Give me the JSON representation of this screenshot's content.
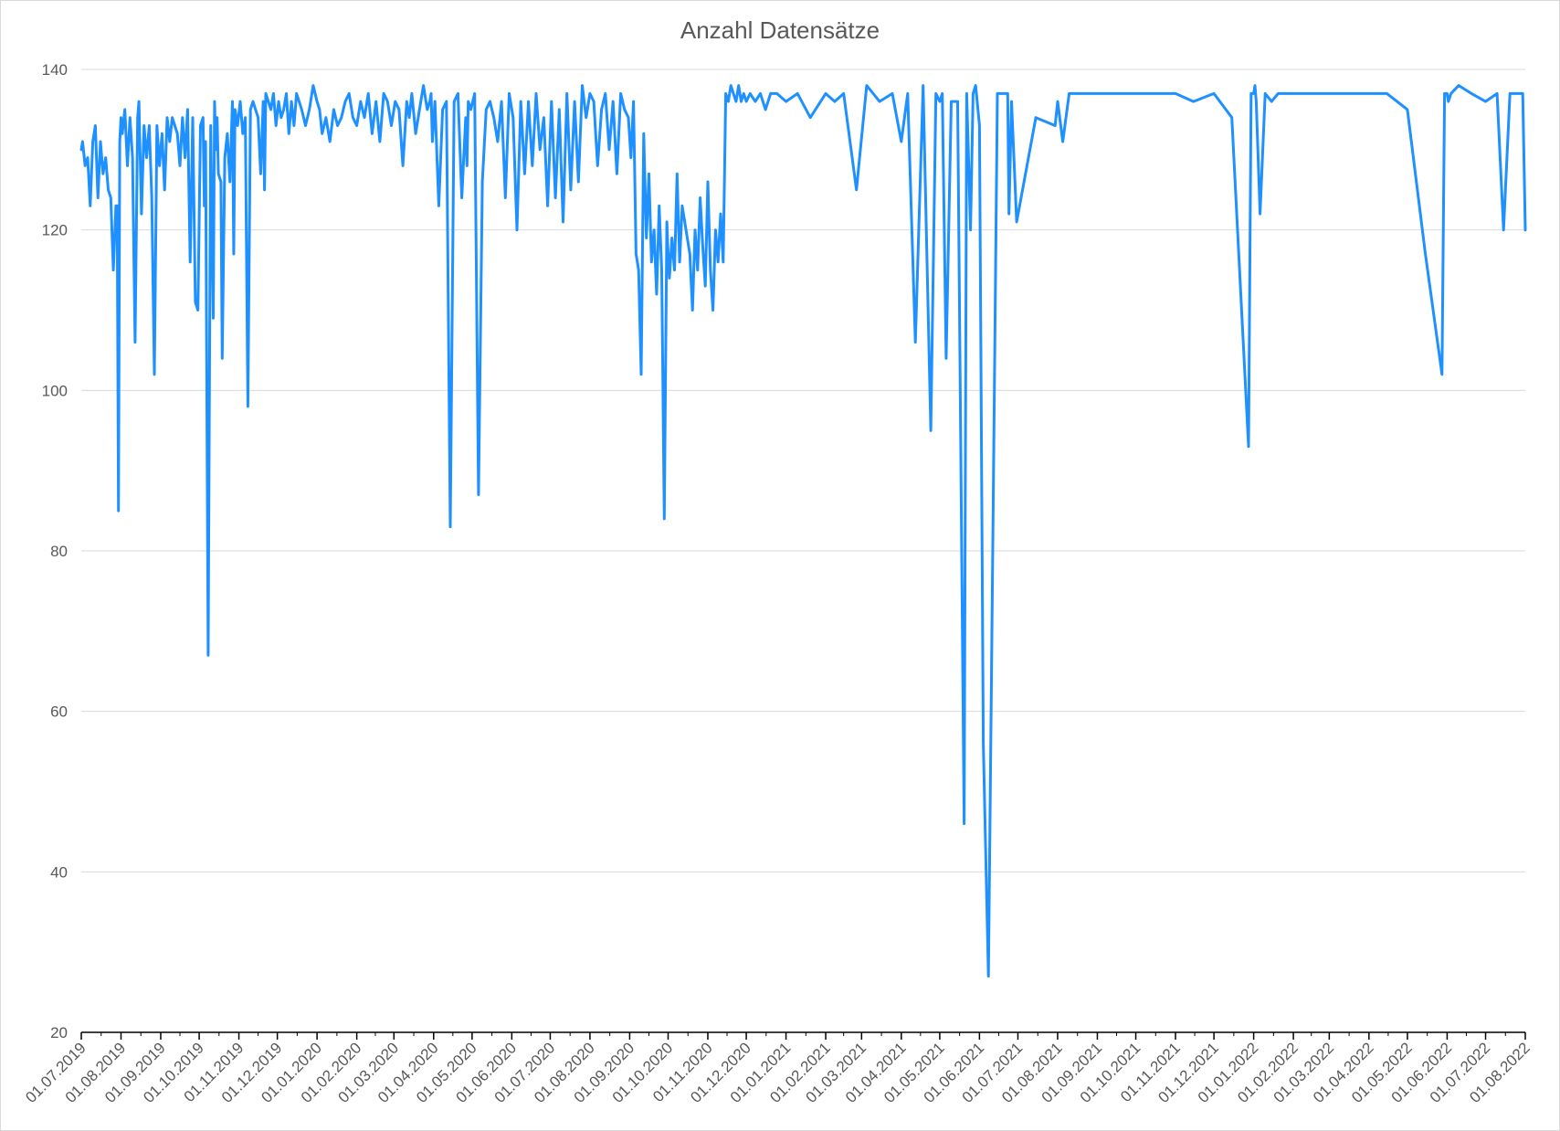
{
  "chart_data": {
    "type": "line",
    "title": "Anzahl Datensätze",
    "xlabel": "",
    "ylabel": "",
    "ylim": [
      20,
      140
    ],
    "yticks": [
      20,
      40,
      60,
      80,
      100,
      120,
      140
    ],
    "x_tick_labels": [
      "01.07.2019",
      "01.08.2019",
      "01.09.2019",
      "01.10.2019",
      "01.11.2019",
      "01.12.2019",
      "01.01.2020",
      "01.02.2020",
      "01.03.2020",
      "01.04.2020",
      "01.05.2020",
      "01.06.2020",
      "01.07.2020",
      "01.08.2020",
      "01.09.2020",
      "01.10.2020",
      "01.11.2020",
      "01.12.2020",
      "01.01.2021",
      "01.02.2021",
      "01.03.2021",
      "01.04.2021",
      "01.05.2021",
      "01.06.2021",
      "01.07.2021",
      "01.08.2021",
      "01.09.2021",
      "01.10.2021",
      "01.11.2021",
      "01.12.2021",
      "01.01.2022",
      "01.02.2022",
      "01.03.2022",
      "01.04.2022",
      "01.05.2022",
      "01.06.2022",
      "01.07.2022",
      "01.08.2022"
    ],
    "grid": true,
    "legend": "none",
    "color": "#1e90ff",
    "series": [
      {
        "x": [
          "2019-07-01",
          "2019-07-02",
          "2019-07-04",
          "2019-07-06",
          "2019-07-08",
          "2019-07-10",
          "2019-07-12",
          "2019-07-14",
          "2019-07-16",
          "2019-07-18",
          "2019-07-20",
          "2019-07-22",
          "2019-07-24",
          "2019-07-26",
          "2019-07-28",
          "2019-07-29",
          "2019-07-30",
          "2019-07-31",
          "2019-08-01",
          "2019-08-02",
          "2019-08-04",
          "2019-08-06",
          "2019-08-08",
          "2019-08-10",
          "2019-08-12",
          "2019-08-14",
          "2019-08-15",
          "2019-08-17",
          "2019-08-19",
          "2019-08-21",
          "2019-08-23",
          "2019-08-25",
          "2019-08-27",
          "2019-08-29",
          "2019-08-31",
          "2019-09-02",
          "2019-09-04",
          "2019-09-06",
          "2019-09-08",
          "2019-09-10",
          "2019-09-12",
          "2019-09-14",
          "2019-09-16",
          "2019-09-18",
          "2019-09-20",
          "2019-09-22",
          "2019-09-24",
          "2019-09-26",
          "2019-09-28",
          "2019-09-30",
          "2019-10-02",
          "2019-10-04",
          "2019-10-05",
          "2019-10-06",
          "2019-10-08",
          "2019-10-10",
          "2019-10-12",
          "2019-10-13",
          "2019-10-14",
          "2019-10-15",
          "2019-10-16",
          "2019-10-18",
          "2019-10-19",
          "2019-10-21",
          "2019-10-23",
          "2019-10-25",
          "2019-10-27",
          "2019-10-28",
          "2019-10-29",
          "2019-10-31",
          "2019-11-02",
          "2019-11-04",
          "2019-11-06",
          "2019-11-08",
          "2019-11-10",
          "2019-11-12",
          "2019-11-14",
          "2019-11-16",
          "2019-11-18",
          "2019-11-20",
          "2019-11-21",
          "2019-11-22",
          "2019-11-24",
          "2019-11-26",
          "2019-11-28",
          "2019-11-30",
          "2019-12-02",
          "2019-12-04",
          "2019-12-06",
          "2019-12-08",
          "2019-12-10",
          "2019-12-12",
          "2019-12-14",
          "2019-12-16",
          "2019-12-18",
          "2019-12-20",
          "2019-12-23",
          "2019-12-26",
          "2019-12-29",
          "2020-01-01",
          "2020-01-03",
          "2020-01-05",
          "2020-01-08",
          "2020-01-11",
          "2020-01-14",
          "2020-01-17",
          "2020-01-20",
          "2020-01-23",
          "2020-01-26",
          "2020-01-29",
          "2020-02-01",
          "2020-02-04",
          "2020-02-07",
          "2020-02-10",
          "2020-02-13",
          "2020-02-16",
          "2020-02-19",
          "2020-02-22",
          "2020-02-25",
          "2020-02-28",
          "2020-03-02",
          "2020-03-05",
          "2020-03-08",
          "2020-03-11",
          "2020-03-13",
          "2020-03-15",
          "2020-03-18",
          "2020-03-21",
          "2020-03-24",
          "2020-03-27",
          "2020-03-29",
          "2020-03-30",
          "2020-03-31",
          "2020-04-02",
          "2020-04-05",
          "2020-04-08",
          "2020-04-11",
          "2020-04-14",
          "2020-04-17",
          "2020-04-20",
          "2020-04-23",
          "2020-04-26",
          "2020-04-27",
          "2020-04-28",
          "2020-04-30",
          "2020-05-03",
          "2020-05-06",
          "2020-05-09",
          "2020-05-12",
          "2020-05-15",
          "2020-05-18",
          "2020-05-21",
          "2020-05-24",
          "2020-05-27",
          "2020-05-30",
          "2020-06-02",
          "2020-06-05",
          "2020-06-08",
          "2020-06-11",
          "2020-06-14",
          "2020-06-17",
          "2020-06-20",
          "2020-06-23",
          "2020-06-26",
          "2020-06-29",
          "2020-07-02",
          "2020-07-05",
          "2020-07-08",
          "2020-07-11",
          "2020-07-14",
          "2020-07-17",
          "2020-07-20",
          "2020-07-23",
          "2020-07-26",
          "2020-07-29",
          "2020-08-01",
          "2020-08-04",
          "2020-08-07",
          "2020-08-10",
          "2020-08-13",
          "2020-08-16",
          "2020-08-19",
          "2020-08-22",
          "2020-08-25",
          "2020-08-28",
          "2020-08-31",
          "2020-09-02",
          "2020-09-04",
          "2020-09-06",
          "2020-09-08",
          "2020-09-10",
          "2020-09-12",
          "2020-09-14",
          "2020-09-16",
          "2020-09-18",
          "2020-09-20",
          "2020-09-22",
          "2020-09-24",
          "2020-09-26",
          "2020-09-28",
          "2020-09-30",
          "2020-10-01",
          "2020-10-02",
          "2020-10-04",
          "2020-10-06",
          "2020-10-08",
          "2020-10-10",
          "2020-10-12",
          "2020-10-14",
          "2020-10-16",
          "2020-10-18",
          "2020-10-20",
          "2020-10-22",
          "2020-10-24",
          "2020-10-26",
          "2020-10-28",
          "2020-10-30",
          "2020-11-01",
          "2020-11-03",
          "2020-11-05",
          "2020-11-07",
          "2020-11-09",
          "2020-11-11",
          "2020-11-13",
          "2020-11-15",
          "2020-11-17",
          "2020-11-19",
          "2020-11-21",
          "2020-11-23",
          "2020-11-25",
          "2020-11-27",
          "2020-11-29",
          "2020-12-01",
          "2020-12-04",
          "2020-12-08",
          "2020-12-12",
          "2020-12-16",
          "2020-12-20",
          "2020-12-25",
          "2021-01-01",
          "2021-01-10",
          "2021-01-20",
          "2021-02-01",
          "2021-02-08",
          "2021-02-15",
          "2021-02-25",
          "2021-03-05",
          "2021-03-15",
          "2021-03-25",
          "2021-04-01",
          "2021-04-06",
          "2021-04-12",
          "2021-04-18",
          "2021-04-24",
          "2021-04-28",
          "2021-05-01",
          "2021-05-03",
          "2021-05-06",
          "2021-05-10",
          "2021-05-15",
          "2021-05-20",
          "2021-05-22",
          "2021-05-25",
          "2021-05-27",
          "2021-05-29",
          "2021-06-01",
          "2021-06-04",
          "2021-06-08",
          "2021-06-15",
          "2021-06-20",
          "2021-06-22",
          "2021-06-23",
          "2021-06-24",
          "2021-06-26",
          "2021-06-30",
          "2021-07-15",
          "2021-07-30",
          "2021-08-01",
          "2021-08-05",
          "2021-08-10",
          "2021-08-15",
          "2021-08-20",
          "2021-08-25",
          "2021-09-01",
          "2021-09-15",
          "2021-10-01",
          "2021-10-15",
          "2021-11-01",
          "2021-11-15",
          "2021-12-01",
          "2021-12-15",
          "2021-12-28",
          "2021-12-30",
          "2022-01-01",
          "2022-01-02",
          "2022-01-03",
          "2022-01-06",
          "2022-01-10",
          "2022-01-15",
          "2022-01-20",
          "2022-01-25",
          "2022-01-30",
          "2022-02-05",
          "2022-02-15",
          "2022-03-01",
          "2022-03-15",
          "2022-04-01",
          "2022-04-15",
          "2022-05-01",
          "2022-05-15",
          "2022-05-28",
          "2022-05-30",
          "2022-06-01",
          "2022-06-02",
          "2022-06-04",
          "2022-06-10",
          "2022-06-20",
          "2022-07-01",
          "2022-07-10",
          "2022-07-15",
          "2022-07-20",
          "2022-07-25",
          "2022-07-30",
          "2022-08-01"
        ],
        "y": [
          130,
          131,
          128,
          129,
          123,
          131,
          133,
          124,
          131,
          127,
          129,
          125,
          124,
          115,
          123,
          123,
          85,
          131,
          134,
          132,
          135,
          128,
          134,
          129,
          106,
          134,
          136,
          122,
          133,
          129,
          133,
          124,
          102,
          133,
          128,
          132,
          125,
          134,
          131,
          134,
          133,
          132,
          128,
          134,
          129,
          135,
          116,
          134,
          111,
          110,
          133,
          134,
          123,
          131,
          67,
          133,
          109,
          136,
          130,
          134,
          127,
          126,
          104,
          129,
          132,
          126,
          136,
          117,
          135,
          133,
          136,
          132,
          134,
          98,
          135,
          136,
          135,
          134,
          127,
          136,
          125,
          137,
          136,
          135,
          137,
          133,
          136,
          134,
          135,
          137,
          132,
          136,
          133,
          137,
          136,
          135,
          133,
          135,
          138,
          136,
          135,
          132,
          134,
          131,
          135,
          133,
          134,
          136,
          137,
          134,
          133,
          136,
          134,
          137,
          132,
          136,
          131,
          137,
          136,
          133,
          136,
          135,
          128,
          136,
          134,
          137,
          132,
          135,
          138,
          135,
          136,
          137,
          131,
          136,
          123,
          135,
          136,
          83,
          136,
          137,
          124,
          134,
          128,
          136,
          135,
          137,
          87,
          126,
          135,
          136,
          134,
          131,
          136,
          124,
          137,
          134,
          120,
          136,
          127,
          136,
          128,
          137,
          130,
          134,
          123,
          136,
          124,
          135,
          121,
          137,
          125,
          136,
          126,
          138,
          134,
          137,
          136,
          128,
          135,
          137,
          130,
          136,
          127,
          137,
          135,
          134,
          129,
          136,
          117,
          115,
          102,
          132,
          119,
          127,
          116,
          120,
          112,
          123,
          115,
          84,
          121,
          117,
          114,
          119,
          115,
          127,
          116,
          123,
          121,
          119,
          117,
          110,
          120,
          115,
          124,
          118,
          113,
          126,
          115,
          110,
          120,
          116,
          122,
          116,
          137,
          136,
          138,
          137,
          136,
          138,
          136,
          137,
          136,
          137,
          136,
          137,
          135,
          137,
          137,
          136,
          137,
          134,
          137,
          136,
          137,
          125,
          138,
          136,
          137,
          131,
          137,
          106,
          138,
          95,
          137,
          136,
          137,
          104,
          136,
          136,
          46,
          137,
          120,
          137,
          138,
          133,
          56,
          27,
          137,
          137,
          137,
          137,
          122,
          136,
          121,
          134,
          133,
          136,
          131,
          137,
          137,
          137,
          137,
          137,
          137,
          137,
          137,
          137,
          136,
          137,
          134,
          93,
          137,
          137,
          138,
          136,
          122,
          137,
          136,
          137,
          137,
          137,
          137,
          137,
          137,
          137,
          137,
          137,
          135,
          117,
          102,
          137,
          137,
          136,
          137,
          138,
          137,
          136,
          137,
          120,
          137,
          137,
          137,
          120
        ]
      }
    ]
  }
}
